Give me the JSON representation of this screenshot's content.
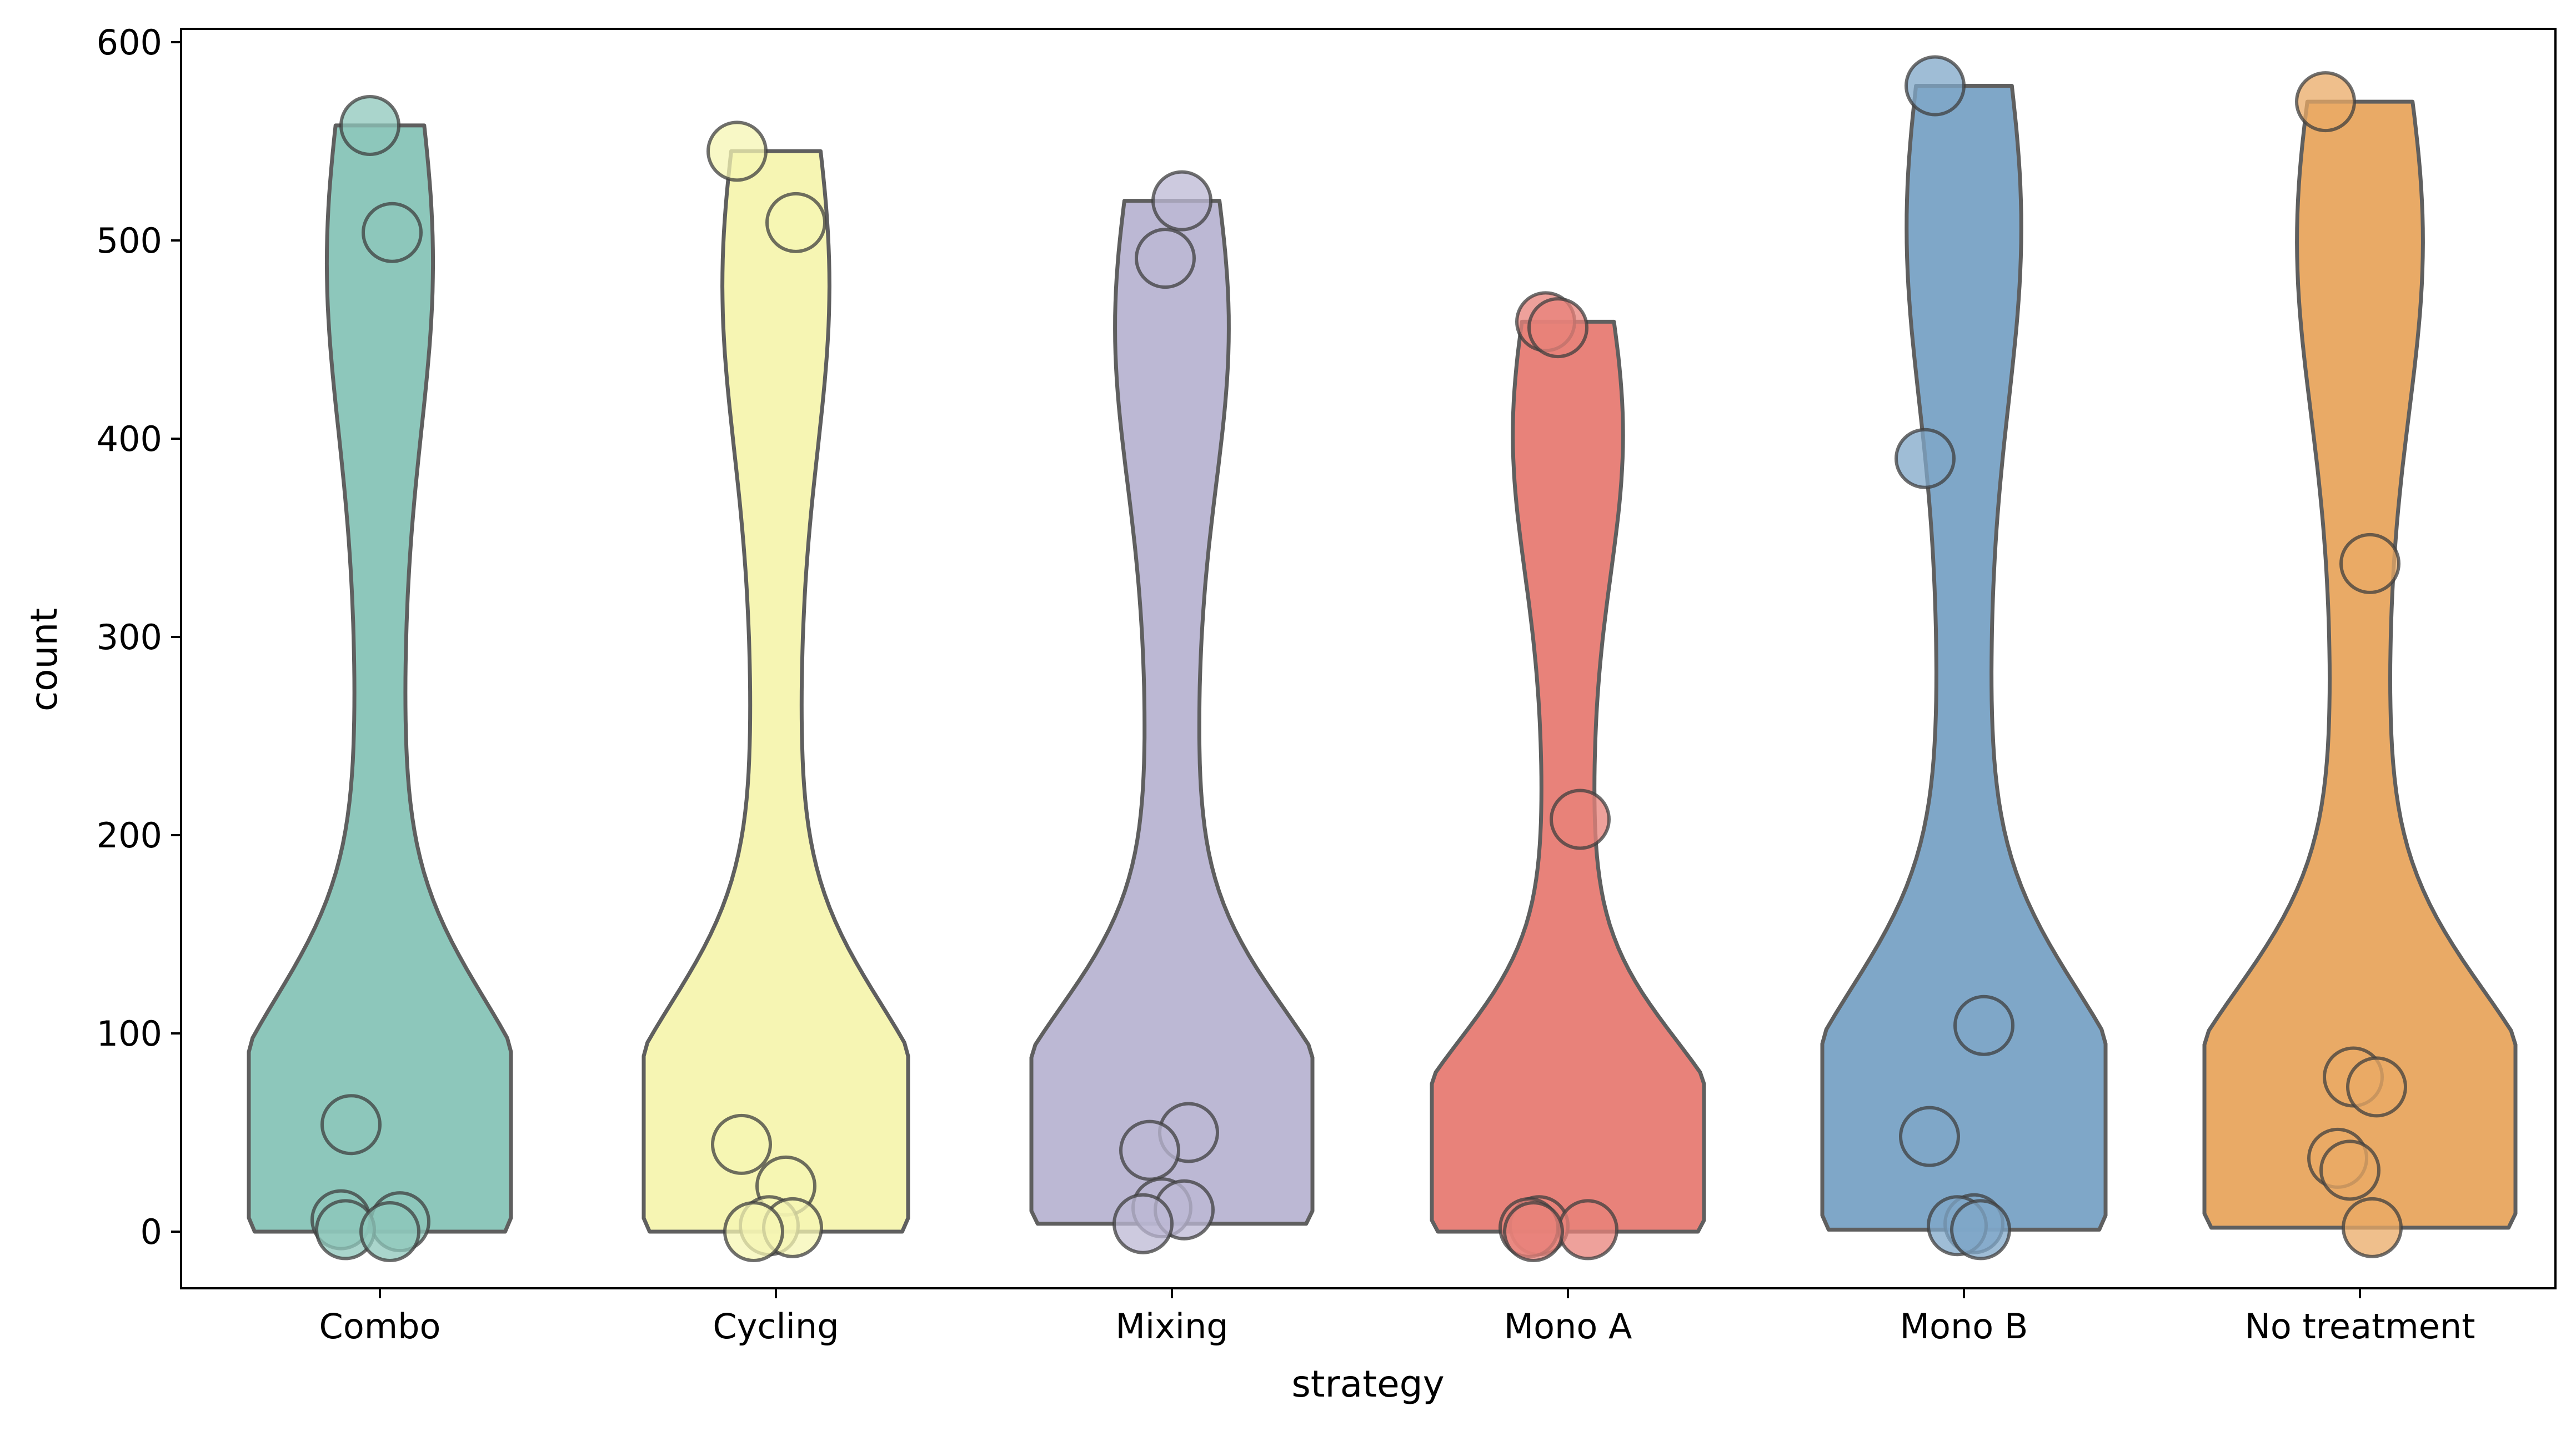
{
  "chart_data": {
    "type": "violin",
    "xlabel": "strategy",
    "ylabel": "count",
    "ylim": [
      -30,
      610
    ],
    "yticks": [
      0,
      100,
      200,
      300,
      400,
      500,
      600
    ],
    "grid": false,
    "categories": [
      "Combo",
      "Cycling",
      "Mixing",
      "Mono A",
      "Mono B",
      "No treatment"
    ],
    "series": [
      {
        "category": "Combo",
        "color": "#8dc7bb",
        "range": [
          0,
          558
        ],
        "points": [
          558,
          504,
          54,
          6,
          5,
          1,
          0
        ]
      },
      {
        "category": "Cycling",
        "color": "#f6f5b3",
        "range": [
          0,
          545
        ],
        "points": [
          545,
          509,
          44,
          23,
          3,
          2,
          0
        ]
      },
      {
        "category": "Mixing",
        "color": "#bcb8d4",
        "range": [
          4,
          520
        ],
        "points": [
          520,
          491,
          50,
          41,
          12,
          11,
          4
        ]
      },
      {
        "category": "Mono A",
        "color": "#e8827a",
        "range": [
          0,
          459
        ],
        "points": [
          459,
          456,
          208,
          3,
          2,
          1,
          0
        ]
      },
      {
        "category": "Mono B",
        "color": "#7fa7c8",
        "range": [
          1,
          578
        ],
        "points": [
          578,
          390,
          104,
          48,
          4,
          3,
          1
        ]
      },
      {
        "category": "No treatment",
        "color": "#e9aa66",
        "range": [
          2,
          570
        ],
        "points": [
          570,
          337,
          78,
          73,
          37,
          31,
          2
        ]
      }
    ]
  }
}
